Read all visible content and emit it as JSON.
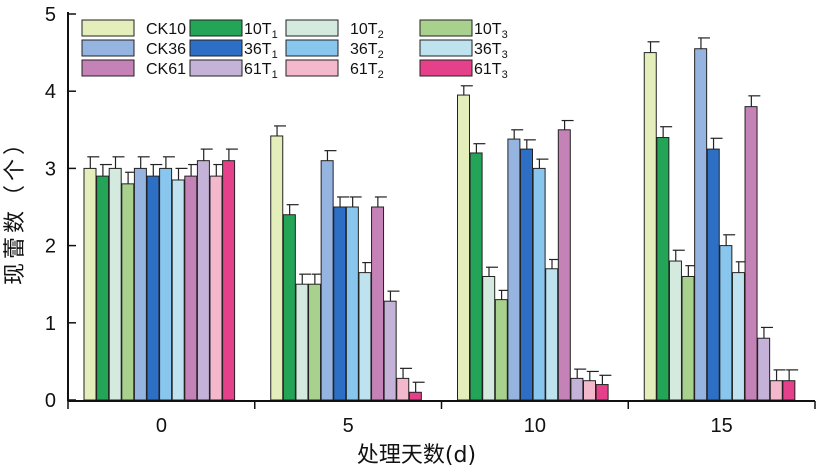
{
  "chart_data": {
    "type": "bar",
    "xlabel": "处理天数(d)",
    "ylabel": "现蕾数（个）",
    "ylim": [
      0,
      5
    ],
    "yticks": [
      "0",
      "1",
      "2",
      "3",
      "4",
      "5"
    ],
    "categories": [
      "0",
      "5",
      "10",
      "15"
    ],
    "legend_position": "top-left",
    "series": [
      {
        "name": "CK10",
        "label_main": "CK10",
        "label_sub": "",
        "color": "#e4eebb",
        "values": [
          3.0,
          3.42,
          3.95,
          4.5
        ],
        "errors": [
          0.15,
          0.13,
          0.12,
          0.14
        ]
      },
      {
        "name": "10T1",
        "label_main": "10T",
        "label_sub": "1",
        "color": "#23a456",
        "values": [
          2.9,
          2.4,
          3.2,
          3.4
        ],
        "errors": [
          0.15,
          0.13,
          0.12,
          0.14
        ]
      },
      {
        "name": "10T2",
        "label_main": "10T",
        "label_sub": "2",
        "color": "#d4eadf",
        "values": [
          3.0,
          1.5,
          1.6,
          1.8
        ],
        "errors": [
          0.15,
          0.13,
          0.12,
          0.14
        ]
      },
      {
        "name": "10T3",
        "label_main": "10T",
        "label_sub": "3",
        "color": "#a9d18e",
        "values": [
          2.8,
          1.5,
          1.3,
          1.6
        ],
        "errors": [
          0.15,
          0.13,
          0.12,
          0.14
        ]
      },
      {
        "name": "CK36",
        "label_main": "CK36",
        "label_sub": "",
        "color": "#95b4e0",
        "values": [
          3.0,
          3.1,
          3.38,
          4.55
        ],
        "errors": [
          0.15,
          0.13,
          0.12,
          0.14
        ]
      },
      {
        "name": "36T1",
        "label_main": "36T",
        "label_sub": "1",
        "color": "#2d6fc4",
        "values": [
          2.9,
          2.5,
          3.25,
          3.25
        ],
        "errors": [
          0.15,
          0.13,
          0.12,
          0.14
        ]
      },
      {
        "name": "36T2",
        "label_main": "36T",
        "label_sub": "2",
        "color": "#89c6ee",
        "values": [
          3.0,
          2.5,
          3.0,
          2.0
        ],
        "errors": [
          0.15,
          0.13,
          0.12,
          0.14
        ]
      },
      {
        "name": "36T3",
        "label_main": "36T",
        "label_sub": "3",
        "color": "#bfe3ee",
        "values": [
          2.85,
          1.65,
          1.7,
          1.65
        ],
        "errors": [
          0.15,
          0.13,
          0.12,
          0.14
        ]
      },
      {
        "name": "CK61",
        "label_main": "CK61",
        "label_sub": "",
        "color": "#c582b6",
        "values": [
          2.9,
          2.5,
          3.5,
          3.8
        ],
        "errors": [
          0.15,
          0.13,
          0.12,
          0.14
        ]
      },
      {
        "name": "61T1",
        "label_main": "61T",
        "label_sub": "1",
        "color": "#c4b2d8",
        "values": [
          3.1,
          1.28,
          0.28,
          0.8
        ],
        "errors": [
          0.15,
          0.13,
          0.12,
          0.14
        ]
      },
      {
        "name": "61T2",
        "label_main": "61T",
        "label_sub": "2",
        "color": "#f4b8cc",
        "values": [
          2.9,
          0.28,
          0.25,
          0.25
        ],
        "errors": [
          0.15,
          0.13,
          0.12,
          0.14
        ]
      },
      {
        "name": "61T3",
        "label_main": "61T",
        "label_sub": "3",
        "color": "#e5418a",
        "values": [
          3.1,
          0.1,
          0.2,
          0.25
        ],
        "errors": [
          0.15,
          0.13,
          0.12,
          0.14
        ]
      }
    ]
  }
}
